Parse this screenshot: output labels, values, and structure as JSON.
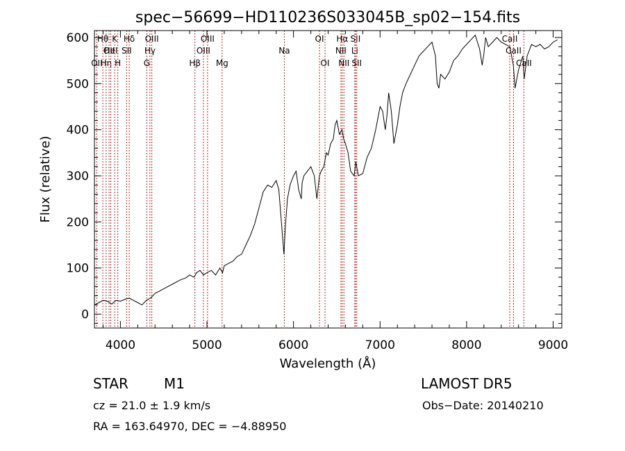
{
  "footer": {
    "class": "STAR",
    "subclass": "M1",
    "release": "LAMOST DR5",
    "cz": "cz = 21.0 ± 1.9 km/s",
    "obs_date": "Obs−Date: 20140210",
    "radec": "RA = 163.64970, DEC =  −4.88950"
  },
  "colors": {
    "line_marker": "#b22222",
    "spectrum": "#000000",
    "axes": "#000000"
  },
  "chart_data": {
    "type": "line",
    "title": "spec−56699−HD110236S033045B_sp02−154.fits",
    "xlabel": "Wavelength (Å)",
    "ylabel": "Flux (relative)",
    "xlim": [
      3700,
      9100
    ],
    "ylim": [
      -30,
      615
    ],
    "xticks": [
      4000,
      5000,
      6000,
      7000,
      8000,
      9000
    ],
    "yticks": [
      0,
      100,
      200,
      300,
      400,
      500,
      600
    ],
    "grid": false,
    "series": [
      {
        "x": [
          3700,
          3750,
          3800,
          3850,
          3900,
          3950,
          4000,
          4050,
          4100,
          4150,
          4200,
          4250,
          4300,
          4350,
          4400,
          4450,
          4500,
          4550,
          4600,
          4650,
          4700,
          4750,
          4800,
          4850,
          4880,
          4920,
          4960,
          5000,
          5050,
          5100,
          5150,
          5180,
          5200,
          5250,
          5300,
          5350,
          5400,
          5450,
          5500,
          5550,
          5600,
          5650,
          5700,
          5750,
          5800,
          5830,
          5860,
          5890,
          5900,
          5910,
          5930,
          5960,
          6000,
          6030,
          6060,
          6090,
          6100,
          6120,
          6160,
          6200,
          6240,
          6270,
          6300,
          6320,
          6350,
          6380,
          6400,
          6430,
          6460,
          6480,
          6500,
          6530,
          6560,
          6580,
          6600,
          6630,
          6660,
          6700,
          6720,
          6750,
          6800,
          6850,
          6900,
          6950,
          7000,
          7030,
          7060,
          7080,
          7100,
          7130,
          7160,
          7200,
          7230,
          7260,
          7300,
          7350,
          7400,
          7450,
          7500,
          7550,
          7600,
          7640,
          7660,
          7680,
          7700,
          7750,
          7800,
          7850,
          7900,
          7950,
          8000,
          8050,
          8100,
          8150,
          8180,
          8200,
          8220,
          8250,
          8300,
          8350,
          8400,
          8450,
          8500,
          8540,
          8560,
          8600,
          8650,
          8665,
          8700,
          8750,
          8800,
          8850,
          8900,
          8950,
          9000,
          9050
        ],
        "y": [
          20,
          25,
          30,
          28,
          22,
          30,
          28,
          32,
          35,
          30,
          25,
          20,
          30,
          35,
          45,
          50,
          55,
          60,
          65,
          70,
          75,
          78,
          85,
          80,
          90,
          95,
          85,
          90,
          95,
          85,
          100,
          90,
          105,
          110,
          115,
          125,
          130,
          150,
          170,
          195,
          230,
          265,
          280,
          275,
          290,
          270,
          200,
          130,
          170,
          200,
          250,
          280,
          300,
          310,
          270,
          250,
          285,
          300,
          310,
          320,
          300,
          250,
          300,
          310,
          320,
          350,
          345,
          370,
          380,
          410,
          420,
          390,
          400,
          380,
          370,
          350,
          310,
          300,
          330,
          300,
          305,
          340,
          360,
          400,
          450,
          440,
          400,
          430,
          480,
          440,
          370,
          410,
          450,
          480,
          500,
          520,
          540,
          560,
          570,
          580,
          590,
          560,
          500,
          490,
          520,
          510,
          525,
          550,
          560,
          575,
          585,
          595,
          605,
          575,
          540,
          565,
          600,
          580,
          590,
          600,
          590,
          585,
          580,
          540,
          490,
          530,
          560,
          510,
          560,
          585,
          580,
          585,
          575,
          580,
          590,
          595
        ]
      }
    ],
    "lines": [
      {
        "x": 3727,
        "labels": [
          "OII"
        ],
        "row": 2
      },
      {
        "x": 3797,
        "labels": [
          "Hθ"
        ],
        "row": 0
      },
      {
        "x": 3835,
        "labels": [
          "Hη"
        ],
        "row": 2
      },
      {
        "x": 3869,
        "labels": [
          "OII"
        ],
        "row": 1
      },
      {
        "x": 3889,
        "labels": [
          "HeI"
        ],
        "row": 1
      },
      {
        "x": 3934,
        "labels": [
          "K"
        ],
        "row": 0
      },
      {
        "x": 3970,
        "labels": [
          "H"
        ],
        "row": 2
      },
      {
        "x": 4072,
        "labels": [
          "SII"
        ],
        "row": 1
      },
      {
        "x": 4102,
        "labels": [
          "Hδ"
        ],
        "row": 0
      },
      {
        "x": 4305,
        "labels": [
          "G"
        ],
        "row": 2
      },
      {
        "x": 4341,
        "labels": [
          "Hγ"
        ],
        "row": 1
      },
      {
        "x": 4363,
        "labels": [
          "OIII"
        ],
        "row": 0
      },
      {
        "x": 4861,
        "labels": [
          "Hβ"
        ],
        "row": 2
      },
      {
        "x": 4959,
        "labels": [
          "OIII"
        ],
        "row": 1
      },
      {
        "x": 5007,
        "labels": [
          "OIII"
        ],
        "row": 0
      },
      {
        "x": 5175,
        "labels": [
          "Mg"
        ],
        "row": 2
      },
      {
        "x": 5894,
        "labels": [
          "Na"
        ],
        "row": 1
      },
      {
        "x": 6300,
        "labels": [
          "OI"
        ],
        "row": 0
      },
      {
        "x": 6364,
        "labels": [
          "OI"
        ],
        "row": 2
      },
      {
        "x": 6548,
        "labels": [
          "NII"
        ],
        "row": 1
      },
      {
        "x": 6563,
        "labels": [
          "Hα"
        ],
        "row": 0
      },
      {
        "x": 6583,
        "labels": [
          "NII"
        ],
        "row": 2
      },
      {
        "x": 6708,
        "labels": [
          "Li"
        ],
        "row": 1
      },
      {
        "x": 6716,
        "labels": [
          "SII"
        ],
        "row": 0
      },
      {
        "x": 6731,
        "labels": [
          "SII"
        ],
        "row": 2
      },
      {
        "x": 8498,
        "labels": [
          "CaII"
        ],
        "row": 0
      },
      {
        "x": 8542,
        "labels": [
          "CaII"
        ],
        "row": 1
      },
      {
        "x": 8662,
        "labels": [
          "CaII"
        ],
        "row": 2
      }
    ]
  }
}
